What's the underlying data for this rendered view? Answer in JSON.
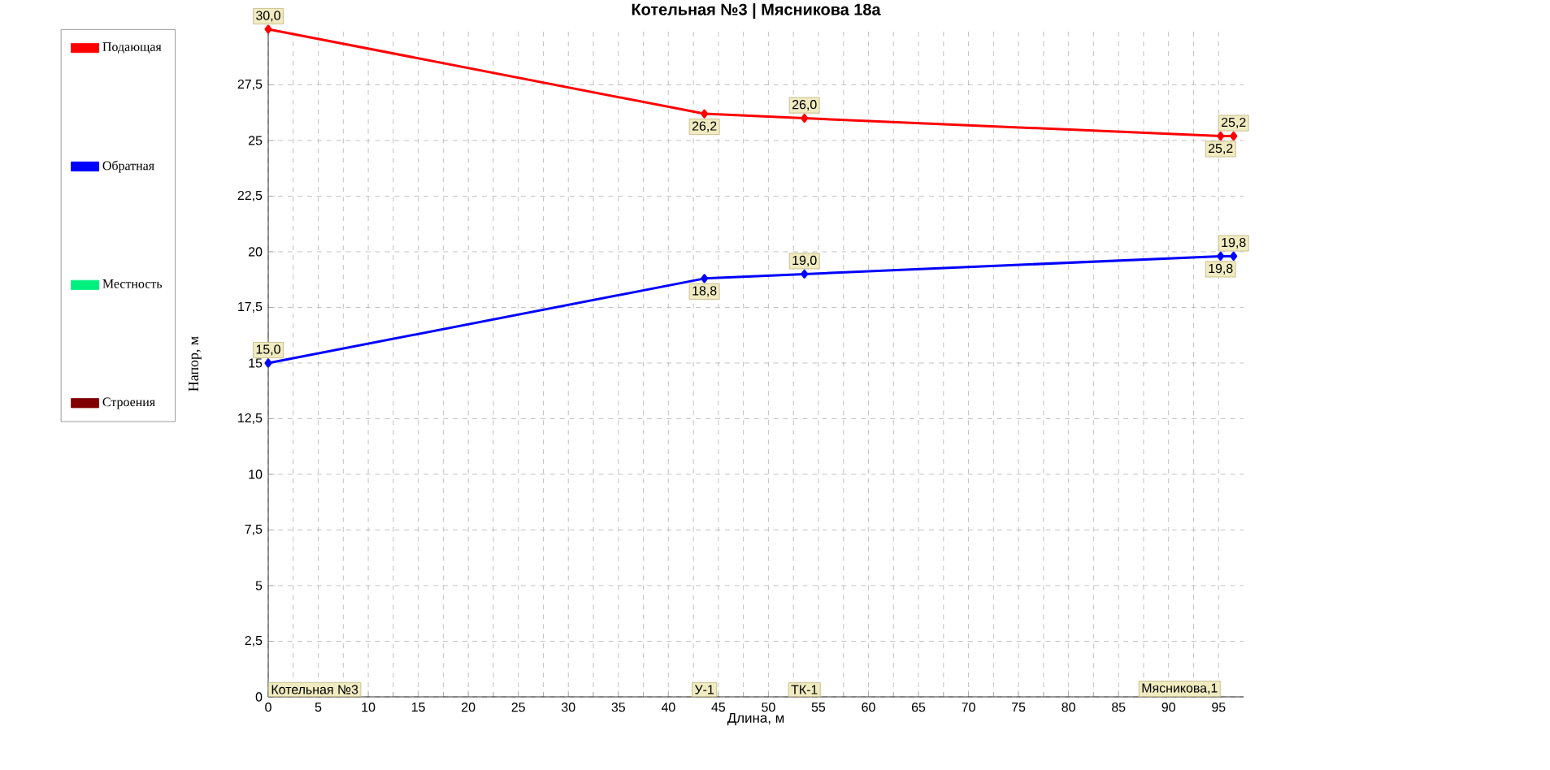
{
  "chart_data": {
    "type": "line",
    "title": "Котельная №3 | Мясникова 18а",
    "xlabel": "Длина, м",
    "ylabel": "Напор, м",
    "x": [
      0,
      43.6,
      53.6,
      95.2,
      96.5
    ],
    "series": [
      {
        "name": "Подающая",
        "color": "#ff0000",
        "values": [
          30.0,
          26.2,
          26.0,
          25.2,
          25.2
        ],
        "value_labels": [
          "30,0",
          "26,2",
          "26,0",
          "25,2",
          "25,2"
        ]
      },
      {
        "name": "Обратная",
        "color": "#0000ff",
        "values": [
          15.0,
          18.8,
          19.0,
          19.8,
          19.8
        ],
        "value_labels": [
          "15,0",
          "18,8",
          "19,0",
          "19,8",
          "19,8"
        ]
      },
      {
        "name": "Местность",
        "color": "#00f080",
        "values": [
          null,
          null,
          null,
          null,
          null
        ]
      },
      {
        "name": "Строения",
        "color": "#800000",
        "values": [
          null,
          null,
          null,
          null,
          null
        ]
      }
    ],
    "annotations": [
      "Котельная №3",
      "У-1",
      "ТК-1",
      "Мясникова,1"
    ],
    "xlim": [
      0,
      97.5
    ],
    "ylim": [
      0,
      30
    ],
    "xticks": [
      0,
      5,
      10,
      15,
      20,
      25,
      30,
      35,
      40,
      45,
      50,
      55,
      60,
      65,
      70,
      75,
      80,
      85,
      90,
      95
    ],
    "yticks": [
      0,
      {
        "value": 2.5,
        "label": "2,5"
      },
      5,
      {
        "value": 7.5,
        "label": "7,5"
      },
      10,
      {
        "value": 12.5,
        "label": "12,5"
      },
      15,
      {
        "value": 17.5,
        "label": "17,5"
      },
      20,
      {
        "value": 22.5,
        "label": "22,5"
      },
      25,
      {
        "value": 27.5,
        "label": "27,5"
      }
    ],
    "grid": true,
    "legend": "left",
    "marker": "diamond",
    "line_style": "solid"
  }
}
